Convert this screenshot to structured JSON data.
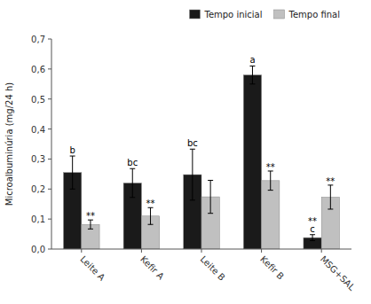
{
  "chart_data": {
    "type": "bar",
    "categories": [
      "Leite A",
      "Kefir A",
      "Leite B",
      "Kefir B",
      "MSG+SAL"
    ],
    "series": [
      {
        "name": "Tempo inicial",
        "color": "#1a1a1a",
        "values": [
          0.255,
          0.22,
          0.248,
          0.58,
          0.038
        ],
        "errors": [
          0.055,
          0.048,
          0.085,
          0.03,
          0.01
        ],
        "letters": [
          "b",
          "bc",
          "bc",
          "a",
          "c"
        ],
        "significance": [
          null,
          null,
          null,
          null,
          "**"
        ]
      },
      {
        "name": "Tempo final",
        "color": "#c0c0c0",
        "values": [
          0.082,
          0.11,
          0.174,
          0.228,
          0.173
        ],
        "errors": [
          0.015,
          0.028,
          0.055,
          0.032,
          0.04
        ],
        "significance": [
          "**",
          "**",
          null,
          "**",
          "**"
        ]
      }
    ],
    "ylabel": "Microalbuminúria (mg/24 h)",
    "ylim": [
      0.0,
      0.7
    ],
    "yticks": [
      {
        "value": 0.0,
        "label": "0,0"
      },
      {
        "value": 0.1,
        "label": "0,1"
      },
      {
        "value": 0.2,
        "label": "0,2"
      },
      {
        "value": 0.3,
        "label": "0,3"
      },
      {
        "value": 0.4,
        "label": "0,4"
      },
      {
        "value": 0.5,
        "label": "0,5"
      },
      {
        "value": 0.6,
        "label": "0,6"
      },
      {
        "value": 0.7,
        "label": "0,7"
      }
    ],
    "grid": false,
    "legend": "upper right"
  }
}
